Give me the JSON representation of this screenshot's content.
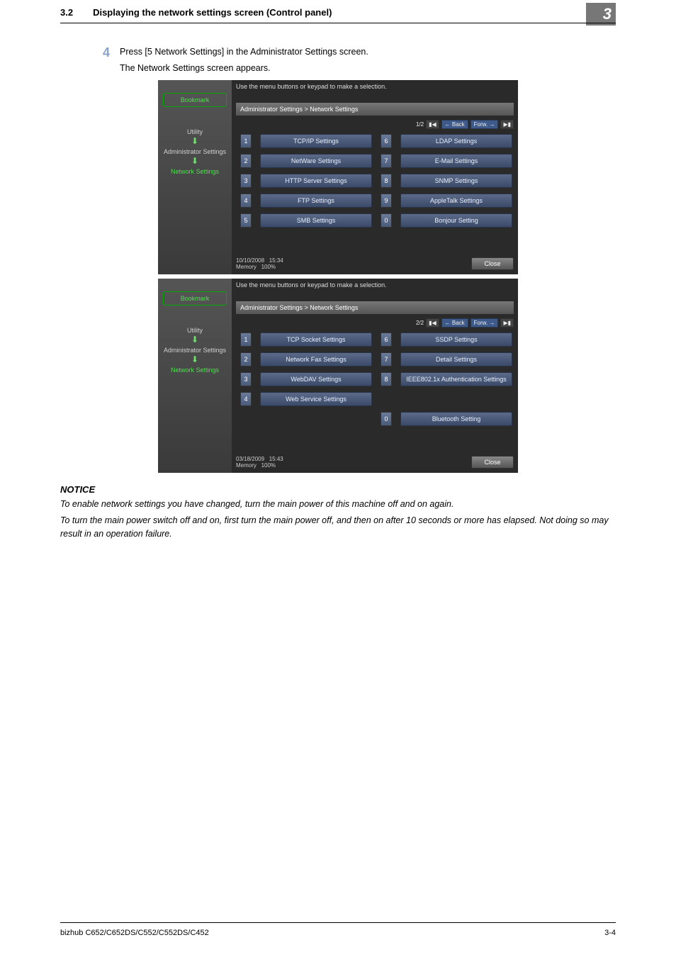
{
  "header": {
    "section_number": "3.2",
    "section_title": "Displaying the network settings screen (Control panel)",
    "chapter_badge": "3"
  },
  "step": {
    "number": "4",
    "text": "Press [5 Network Settings] in the Administrator Settings screen.",
    "subtext": "The Network Settings screen appears."
  },
  "screens": [
    {
      "top_message": "Use the menu buttons or keypad to make a selection.",
      "breadcrumb": "Administrator Settings > Network Settings",
      "page_indicator": "1/2",
      "back_label": "Back",
      "forward_label": "Forw.",
      "sidebar": {
        "bookmark": "Bookmark",
        "items": [
          "Utility",
          "Administrator Settings",
          "Network Settings"
        ],
        "selected_index": 2
      },
      "menu": {
        "left": [
          {
            "n": "1",
            "label": "TCP/IP Settings"
          },
          {
            "n": "2",
            "label": "NetWare Settings"
          },
          {
            "n": "3",
            "label": "HTTP Server Settings"
          },
          {
            "n": "4",
            "label": "FTP Settings"
          },
          {
            "n": "5",
            "label": "SMB Settings"
          }
        ],
        "right": [
          {
            "n": "6",
            "label": "LDAP Settings"
          },
          {
            "n": "7",
            "label": "E-Mail Settings"
          },
          {
            "n": "8",
            "label": "SNMP Settings"
          },
          {
            "n": "9",
            "label": "AppleTalk Settings"
          },
          {
            "n": "0",
            "label": "Bonjour Setting"
          }
        ]
      },
      "status": {
        "date": "10/10/2008",
        "time": "15:34",
        "memory_label": "Memory",
        "memory_value": "100%"
      },
      "close_label": "Close"
    },
    {
      "top_message": "Use the menu buttons or keypad to make a selection.",
      "breadcrumb": "Administrator Settings > Network Settings",
      "page_indicator": "2/2",
      "back_label": "Back",
      "forward_label": "Forw.",
      "sidebar": {
        "bookmark": "Bookmark",
        "items": [
          "Utility",
          "Administrator Settings",
          "Network Settings"
        ],
        "selected_index": 2
      },
      "menu": {
        "left": [
          {
            "n": "1",
            "label": "TCP Socket Settings"
          },
          {
            "n": "2",
            "label": "Network Fax Settings"
          },
          {
            "n": "3",
            "label": "WebDAV Settings"
          },
          {
            "n": "4",
            "label": "Web Service Settings"
          },
          null
        ],
        "right": [
          {
            "n": "6",
            "label": "SSDP Settings"
          },
          {
            "n": "7",
            "label": "Detail Settings"
          },
          {
            "n": "8",
            "label": "IEEE802.1x Authentication Settings"
          },
          null,
          {
            "n": "0",
            "label": "Bluetooth Setting"
          }
        ]
      },
      "status": {
        "date": "03/18/2009",
        "time": "15:43",
        "memory_label": "Memory",
        "memory_value": "100%"
      },
      "close_label": "Close"
    }
  ],
  "notice": {
    "heading": "NOTICE",
    "para1": "To enable network settings you have changed, turn the main power of this machine off and on again.",
    "para2": "To turn the main power switch off and on, first turn the main power off, and then on after 10 seconds or more has elapsed. Not doing so may result in an operation failure."
  },
  "footer": {
    "left": "bizhub C652/C652DS/C552/C552DS/C452",
    "right": "3-4"
  },
  "colors": {
    "chapter_badge_bg": "#777777",
    "step_number": "#8aa4c8",
    "screen_bg": "#2a2a2a",
    "sidebar_grad_top": "#555555",
    "sidebar_grad_bot": "#3a3a3a",
    "menu_btn_grad_top": "#5a6a88",
    "menu_btn_grad_bot": "#3a4a68",
    "accent_green": "#4de04d"
  }
}
